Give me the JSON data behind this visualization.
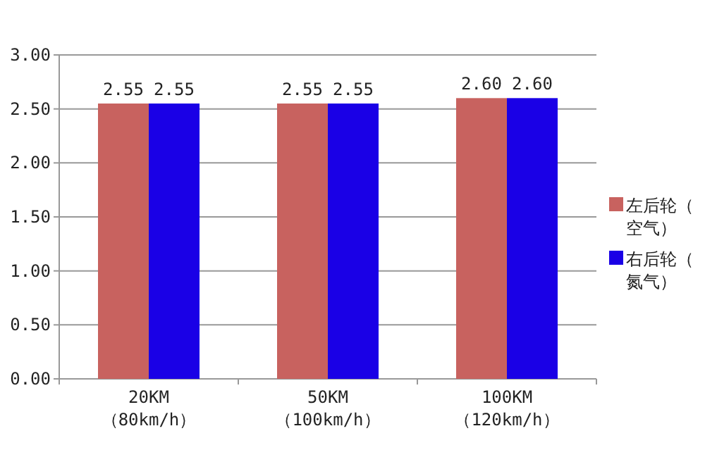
{
  "chart_data": {
    "type": "bar",
    "categories": [
      "20KM\n（80km/h）",
      "50KM\n（100km/h）",
      "100KM\n（120km/h）"
    ],
    "series": [
      {
        "name": "左后轮（空气）",
        "color": "#c8625f",
        "values": [
          2.55,
          2.55,
          2.6
        ],
        "value_labels": [
          "2.55",
          "2.55",
          "2.60"
        ]
      },
      {
        "name": "右后轮（氮气）",
        "color": "#1a00e6",
        "values": [
          2.55,
          2.55,
          2.6
        ],
        "value_labels": [
          "2.55",
          "2.55",
          "2.60"
        ]
      }
    ],
    "ylim": [
      0,
      3
    ],
    "yticks": [
      {
        "value": 0,
        "label": "0.00"
      },
      {
        "value": 0.5,
        "label": "0.50"
      },
      {
        "value": 1,
        "label": "1.00"
      },
      {
        "value": 1.5,
        "label": "1.50"
      },
      {
        "value": 2,
        "label": "2.00"
      },
      {
        "value": 2.5,
        "label": "2.50"
      },
      {
        "value": 3,
        "label": "3.00"
      }
    ],
    "grid": "y",
    "legend": "right"
  }
}
